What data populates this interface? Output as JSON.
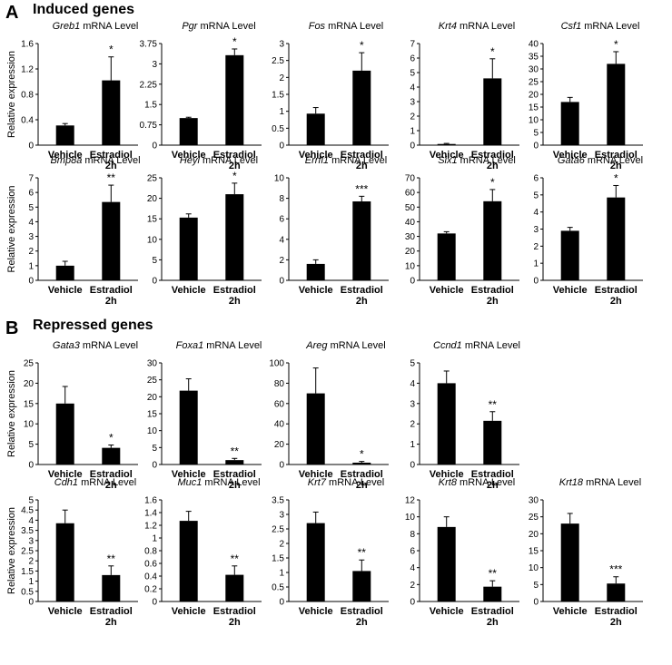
{
  "sections": [
    {
      "letter": "A",
      "title": "Induced genes"
    },
    {
      "letter": "B",
      "title": "Repressed genes"
    }
  ],
  "ylabel": "Relative expression",
  "title_suffix": " mRNA Level",
  "categories": [
    "Vehicle",
    "Estradiol",
    "2h"
  ],
  "colors": {
    "bar": "#000000",
    "axis": "#000000"
  },
  "chart_data": [
    {
      "type": "bar",
      "gene": "Greb1",
      "categories": [
        "Vehicle",
        "Estradiol 2h"
      ],
      "values": [
        0.31,
        1.02
      ],
      "errors": [
        0.03,
        0.37
      ],
      "significance": [
        "",
        "*"
      ],
      "ylim": [
        0,
        1.6
      ],
      "ticks": [
        "0",
        "0.4",
        "0.8",
        "1.2",
        "1.6"
      ]
    },
    {
      "type": "bar",
      "gene": "Pgr",
      "categories": [
        "Vehicle",
        "Estradiol 2h"
      ],
      "values": [
        1.0,
        3.32
      ],
      "errors": [
        0.03,
        0.23
      ],
      "significance": [
        "",
        "*"
      ],
      "ylim": [
        0,
        3.75
      ],
      "ticks": [
        "0",
        "0.75",
        "1.5",
        "2.25",
        "3",
        "3.75"
      ]
    },
    {
      "type": "bar",
      "gene": "Fos",
      "categories": [
        "Vehicle",
        "Estradiol 2h"
      ],
      "values": [
        0.93,
        2.2
      ],
      "errors": [
        0.18,
        0.53
      ],
      "significance": [
        "",
        "*"
      ],
      "ylim": [
        0,
        3
      ],
      "ticks": [
        "0",
        "0.5",
        "1",
        "1.5",
        "2",
        "2.5",
        "3"
      ]
    },
    {
      "type": "bar",
      "gene": "Krt4",
      "categories": [
        "Vehicle",
        "Estradiol 2h"
      ],
      "values": [
        0.08,
        4.6
      ],
      "errors": [
        0.04,
        1.35
      ],
      "significance": [
        "",
        "*"
      ],
      "ylim": [
        0,
        7
      ],
      "ticks": [
        "0",
        "1",
        "2",
        "3",
        "4",
        "5",
        "6",
        "7"
      ]
    },
    {
      "type": "bar",
      "gene": "Csf1",
      "categories": [
        "Vehicle",
        "Estradiol 2h"
      ],
      "values": [
        17,
        32
      ],
      "errors": [
        1.8,
        4.8
      ],
      "significance": [
        "",
        "*"
      ],
      "ylim": [
        0,
        40
      ],
      "ticks": [
        "0",
        "5",
        "10",
        "15",
        "20",
        "25",
        "30",
        "35",
        "40"
      ]
    },
    {
      "type": "bar",
      "gene": "Bmp8a",
      "categories": [
        "Vehicle",
        "Estradiol 2h"
      ],
      "values": [
        1.0,
        5.35
      ],
      "errors": [
        0.3,
        1.15
      ],
      "significance": [
        "",
        "**"
      ],
      "ylim": [
        0,
        7
      ],
      "ticks": [
        "0",
        "1",
        "2",
        "3",
        "4",
        "5",
        "6",
        "7"
      ]
    },
    {
      "type": "bar",
      "gene": "Heyl",
      "categories": [
        "Vehicle",
        "Estradiol 2h"
      ],
      "values": [
        15.3,
        21
      ],
      "errors": [
        0.9,
        2.7
      ],
      "significance": [
        "",
        "*"
      ],
      "ylim": [
        0,
        25
      ],
      "ticks": [
        "0",
        "5",
        "10",
        "15",
        "20",
        "25"
      ]
    },
    {
      "type": "bar",
      "gene": "Errfi1",
      "categories": [
        "Vehicle",
        "Estradiol 2h"
      ],
      "values": [
        1.6,
        7.7
      ],
      "errors": [
        0.4,
        0.5
      ],
      "significance": [
        "",
        "***"
      ],
      "ylim": [
        0,
        10
      ],
      "ticks": [
        "0",
        "2",
        "4",
        "6",
        "8",
        "10"
      ]
    },
    {
      "type": "bar",
      "gene": "Six1",
      "categories": [
        "Vehicle",
        "Estradiol 2h"
      ],
      "values": [
        32,
        54
      ],
      "errors": [
        1.2,
        8
      ],
      "significance": [
        "",
        "*"
      ],
      "ylim": [
        0,
        70
      ],
      "ticks": [
        "0",
        "10",
        "20",
        "30",
        "40",
        "50",
        "60",
        "70"
      ]
    },
    {
      "type": "bar",
      "gene": "Gata6",
      "categories": [
        "Vehicle",
        "Estradiol 2h"
      ],
      "values": [
        2.9,
        4.85
      ],
      "errors": [
        0.2,
        0.7
      ],
      "significance": [
        "",
        "*"
      ],
      "ylim": [
        0,
        6
      ],
      "ticks": [
        "0",
        "1",
        "2",
        "3",
        "4",
        "5",
        "6"
      ]
    },
    {
      "type": "bar",
      "gene": "Gata3",
      "categories": [
        "Vehicle",
        "Estradiol 2h"
      ],
      "values": [
        15,
        4.1
      ],
      "errors": [
        4.2,
        0.7
      ],
      "significance": [
        "",
        "*"
      ],
      "ylim": [
        0,
        25
      ],
      "ticks": [
        "0",
        "5",
        "10",
        "15",
        "20",
        "25"
      ]
    },
    {
      "type": "bar",
      "gene": "Foxa1",
      "categories": [
        "Vehicle",
        "Estradiol 2h"
      ],
      "values": [
        21.8,
        1.3
      ],
      "errors": [
        3.5,
        0.5
      ],
      "significance": [
        "",
        "**"
      ],
      "ylim": [
        0,
        30
      ],
      "ticks": [
        "0",
        "5",
        "10",
        "15",
        "20",
        "25",
        "30"
      ]
    },
    {
      "type": "bar",
      "gene": "Areg",
      "categories": [
        "Vehicle",
        "Estradiol 2h"
      ],
      "values": [
        70,
        1.8
      ],
      "errors": [
        25,
        1.2
      ],
      "significance": [
        "",
        "*"
      ],
      "ylim": [
        0,
        100
      ],
      "ticks": [
        "0",
        "20",
        "40",
        "60",
        "80",
        "100"
      ]
    },
    {
      "type": "bar",
      "gene": "Ccnd1",
      "categories": [
        "Vehicle",
        "Estradiol 2h"
      ],
      "values": [
        4.0,
        2.15
      ],
      "errors": [
        0.6,
        0.45
      ],
      "significance": [
        "",
        "**"
      ],
      "ylim": [
        0,
        5
      ],
      "ticks": [
        "0",
        "1",
        "2",
        "3",
        "4",
        "5"
      ]
    },
    {
      "type": "bar",
      "gene": "Cdh1",
      "categories": [
        "Vehicle",
        "Estradiol 2h"
      ],
      "values": [
        3.85,
        1.3
      ],
      "errors": [
        0.65,
        0.45
      ],
      "significance": [
        "",
        "**"
      ],
      "ylim": [
        0,
        5
      ],
      "ticks": [
        "0",
        "0.5",
        "1",
        "1.5",
        "2",
        "2.5",
        "3",
        "3.5",
        "4",
        "4.5",
        "5"
      ]
    },
    {
      "type": "bar",
      "gene": "Muc1",
      "categories": [
        "Vehicle",
        "Estradiol 2h"
      ],
      "values": [
        1.27,
        0.42
      ],
      "errors": [
        0.15,
        0.14
      ],
      "significance": [
        "",
        "**"
      ],
      "ylim": [
        0,
        1.6
      ],
      "ticks": [
        "0",
        "0.2",
        "0.4",
        "0.6",
        "0.8",
        "1",
        "1.2",
        "1.4",
        "1.6"
      ]
    },
    {
      "type": "bar",
      "gene": "Krt7",
      "categories": [
        "Vehicle",
        "Estradiol 2h"
      ],
      "values": [
        2.7,
        1.05
      ],
      "errors": [
        0.38,
        0.38
      ],
      "significance": [
        "",
        "**"
      ],
      "ylim": [
        0,
        3.5
      ],
      "ticks": [
        "0",
        "0.5",
        "1",
        "1.5",
        "2",
        "2.5",
        "3",
        "3.5"
      ]
    },
    {
      "type": "bar",
      "gene": "Krt8",
      "categories": [
        "Vehicle",
        "Estradiol 2h"
      ],
      "values": [
        8.8,
        1.75
      ],
      "errors": [
        1.2,
        0.7
      ],
      "significance": [
        "",
        "**"
      ],
      "ylim": [
        0,
        12
      ],
      "ticks": [
        "0",
        "2",
        "4",
        "6",
        "8",
        "10",
        "12"
      ]
    },
    {
      "type": "bar",
      "gene": "Krt18",
      "categories": [
        "Vehicle",
        "Estradiol 2h"
      ],
      "values": [
        23,
        5.3
      ],
      "errors": [
        3,
        2
      ],
      "significance": [
        "",
        "***"
      ],
      "ylim": [
        0,
        30
      ],
      "ticks": [
        "0",
        "5",
        "10",
        "15",
        "20",
        "25",
        "30"
      ]
    }
  ]
}
